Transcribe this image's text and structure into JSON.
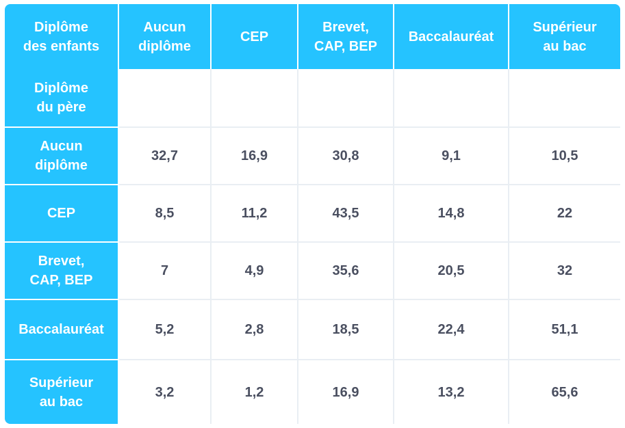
{
  "chart_data": {
    "type": "table",
    "corner_header": "Diplôme\ndes enfants",
    "columns": [
      "Aucun\ndiplôme",
      "CEP",
      "Brevet,\nCAP, BEP",
      "Baccalauréat",
      "Supérieur\nau bac"
    ],
    "sub_header_row_label": "Diplôme\ndu père",
    "rows": [
      {
        "label": "Aucun\ndiplôme",
        "values": [
          "32,7",
          "16,9",
          "30,8",
          "9,1",
          "10,5"
        ]
      },
      {
        "label": "CEP",
        "values": [
          "8,5",
          "11,2",
          "43,5",
          "14,8",
          "22"
        ]
      },
      {
        "label": "Brevet,\nCAP, BEP",
        "values": [
          "7",
          "4,9",
          "35,6",
          "20,5",
          "32"
        ]
      },
      {
        "label": "Baccalauréat",
        "values": [
          "5,2",
          "2,8",
          "18,5",
          "22,4",
          "51,1"
        ]
      },
      {
        "label": "Supérieur\nau bac",
        "values": [
          "3,2",
          "1,2",
          "16,9",
          "13,2",
          "65,6"
        ]
      }
    ]
  },
  "colors": {
    "header": "#25c3ff",
    "cell_text": "#4a4f60",
    "grid": "#e9eef3"
  }
}
